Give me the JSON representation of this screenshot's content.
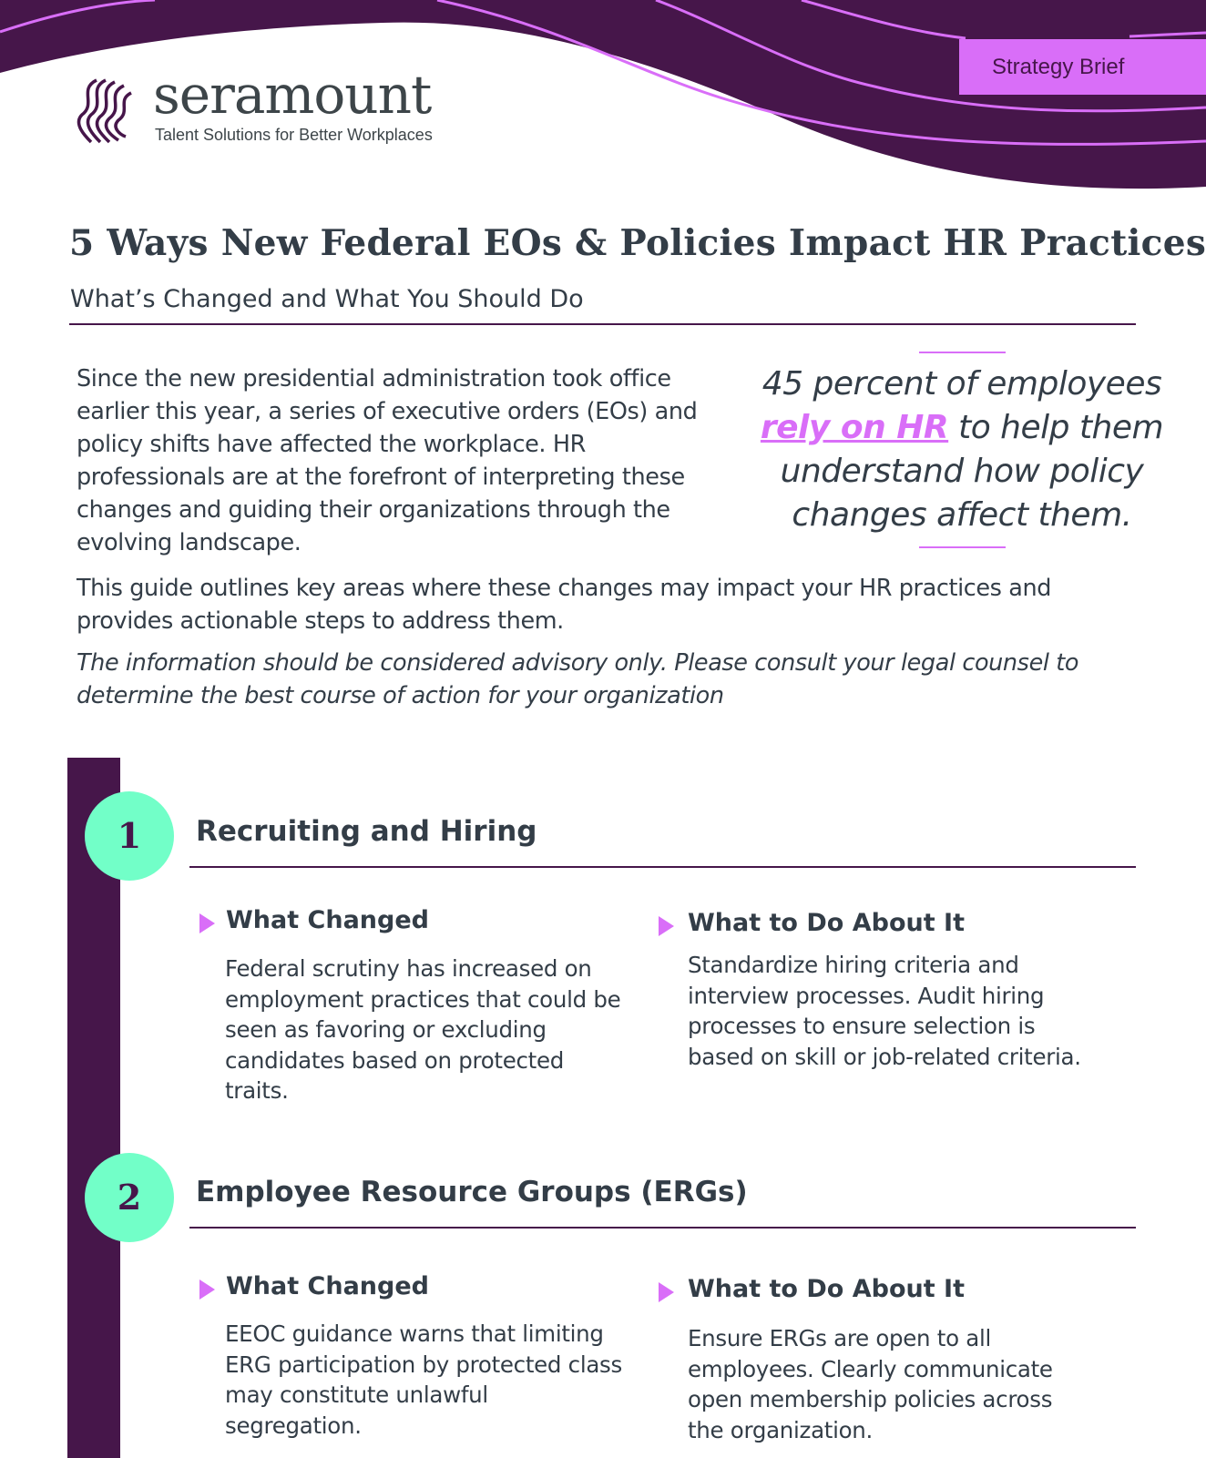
{
  "badge": "Strategy Brief",
  "logo": {
    "name": "seramount",
    "tagline": "Talent Solutions for Better Workplaces"
  },
  "title": "5 Ways New Federal EOs & Policies Impact HR Practices",
  "subtitle": "What’s Changed and What You Should Do",
  "intro": "Since the new presidential administration took office earlier this year, a series of executive orders (EOs) and policy shifts have affected the workplace. HR professionals are at the forefront of interpreting these changes and guiding their organizations through the evolving landscape.",
  "quote": {
    "before": "45 percent of employees ",
    "highlight": "rely on HR",
    "after": " to help them understand how policy changes affect them."
  },
  "para2": "This guide outlines key areas where these changes may impact your HR practices and provides actionable steps to address them.",
  "disclaimer": "The information should be considered advisory only. Please consult your legal counsel to determine the best course of action for your organization",
  "colors": {
    "primary": "#46164a",
    "accent": "#d96ef8",
    "number_circle": "#72ffc8",
    "text": "#333d47"
  },
  "sections": [
    {
      "number": "1",
      "title": "Recruiting and Hiring",
      "changed_label": "What Changed",
      "changed": "Federal scrutiny has increased on employment practices that could be seen as favoring or excluding candidates based on protected traits.",
      "todo_label": "What to Do About It",
      "todo": "Standardize hiring criteria and interview processes. Audit hiring processes to ensure selection is based on skill or job-related criteria."
    },
    {
      "number": "2",
      "title": "Employee Resource Groups (ERGs)",
      "changed_label": "What Changed",
      "changed": "EEOC guidance warns that limiting ERG participation by protected class may constitute unlawful segregation.",
      "todo_label": "What to Do About It",
      "todo": "Ensure ERGs are open to all employees. Clearly communicate open membership policies across the organization."
    }
  ]
}
